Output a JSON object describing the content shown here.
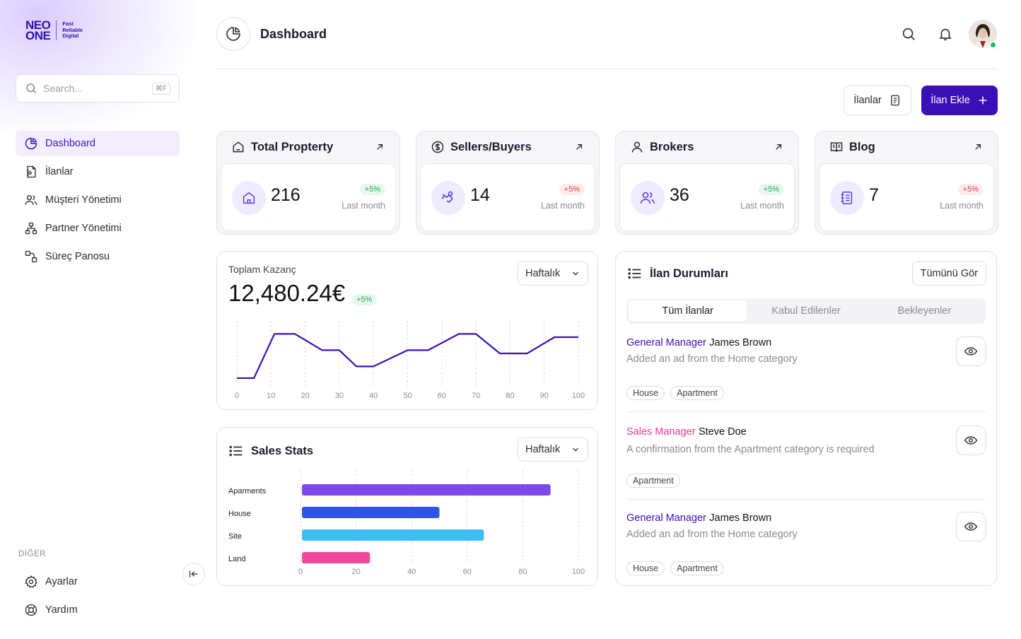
{
  "brand": {
    "line1": "NEO",
    "line2": "ONE",
    "tagline": [
      "Fast",
      "Reliable",
      "Digital"
    ]
  },
  "search": {
    "placeholder": "Search...",
    "shortcut": "⌘F"
  },
  "sidebar": {
    "items": [
      {
        "label": "Dashboard",
        "icon": "pie-chart-icon",
        "active": true
      },
      {
        "label": "İlanlar",
        "icon": "document-icon"
      },
      {
        "label": "Müşteri Yönetimi",
        "icon": "users-icon"
      },
      {
        "label": "Partner Yönetimi",
        "icon": "network-icon"
      },
      {
        "label": "Süreç Panosu",
        "icon": "process-icon"
      }
    ],
    "other_title": "DİĞER",
    "other_items": [
      {
        "label": "Ayarlar",
        "icon": "gear-icon"
      },
      {
        "label": "Yardım",
        "icon": "help-icon"
      }
    ]
  },
  "header": {
    "title": "Dashboard"
  },
  "actions": {
    "listings_label": "İlanlar",
    "add_label": "İlan Ekle"
  },
  "colors": {
    "accent": "#3a0fb5",
    "positive": "#1fa84f",
    "negative": "#e23b3b",
    "role_purple": "#3a0fb5",
    "role_pink": "#e8379a"
  },
  "stats": [
    {
      "title": "Total Propterty",
      "value": "216",
      "change": "+5%",
      "trend": "positive",
      "sub": "Last month",
      "icon": "home-icon"
    },
    {
      "title": "Sellers/Buyers",
      "value": "14",
      "change": "+5%",
      "trend": "negative",
      "sub": "Last month",
      "icon": "handshake-icon"
    },
    {
      "title": "Brokers",
      "value": "36",
      "change": "+5%",
      "trend": "positive",
      "sub": "Last month",
      "icon": "users-icon"
    },
    {
      "title": "Blog",
      "value": "7",
      "change": "+5%",
      "trend": "negative",
      "sub": "Last month",
      "icon": "notebook-icon"
    }
  ],
  "earnings": {
    "label": "Toplam Kazanç",
    "value": "12,480.24€",
    "change": "+5%",
    "period": "Haftalık"
  },
  "sales": {
    "title": "Sales Stats",
    "period": "Haftalık"
  },
  "chart_data": [
    {
      "type": "line",
      "x": [
        0,
        5,
        11,
        17,
        25,
        30,
        35,
        40,
        50,
        56,
        65,
        70,
        77,
        85,
        93,
        100
      ],
      "y": [
        12,
        12,
        80,
        80,
        55,
        55,
        30,
        30,
        55,
        55,
        80,
        80,
        50,
        50,
        75,
        75
      ],
      "xlim": [
        0,
        100
      ],
      "ylim": [
        0,
        100
      ],
      "xticks": [
        0,
        10,
        20,
        30,
        40,
        50,
        60,
        70,
        80,
        90,
        100
      ],
      "grid": "vertical dashed",
      "color": "#3a0fb5"
    },
    {
      "type": "bar",
      "orientation": "horizontal",
      "categories": [
        "Aparments",
        "House",
        "Site",
        "Land"
      ],
      "values": [
        90,
        50,
        66,
        25
      ],
      "colors": [
        "#7b4ae6",
        "#2f55e8",
        "#3dbdf5",
        "#f0489a"
      ],
      "xlim": [
        0,
        100
      ],
      "xticks": [
        0,
        20,
        40,
        60,
        80,
        100
      ],
      "grid": "vertical dashed"
    }
  ],
  "listings": {
    "title": "İlan Durumları",
    "see_all": "Tümünü Gör",
    "tabs": [
      "Tüm İlanlar",
      "Kabul Edilenler",
      "Bekleyenler"
    ],
    "active_tab": 0,
    "items": [
      {
        "role": "General Manager",
        "role_color": "#3a0fb5",
        "name": "James Brown",
        "desc": "Added an ad from the Home category",
        "tags": [
          "House",
          "Apartment"
        ]
      },
      {
        "role": "Sales Manager",
        "role_color": "#e8379a",
        "name": "Steve Doe",
        "desc": "A confirmation from the Apartment category is required",
        "tags": [
          "Apartment"
        ]
      },
      {
        "role": "General Manager",
        "role_color": "#3a0fb5",
        "name": "James Brown",
        "desc": "Added an ad from the Home category",
        "tags": [
          "House",
          "Apartment"
        ]
      }
    ]
  }
}
